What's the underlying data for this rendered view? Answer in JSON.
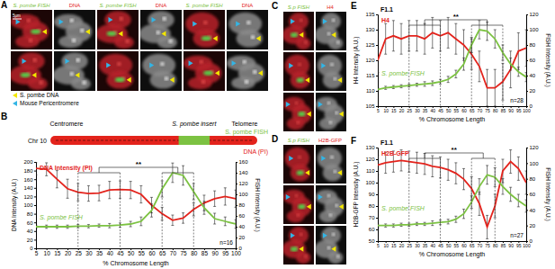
{
  "chart_data": [
    {
      "type": "line",
      "panel": "B",
      "x": [
        5,
        10,
        15,
        20,
        25,
        30,
        35,
        40,
        45,
        50,
        55,
        60,
        65,
        70,
        75,
        80,
        85,
        90,
        95,
        100
      ],
      "xlim": [
        5,
        100
      ],
      "xticks": [
        5,
        10,
        15,
        20,
        25,
        30,
        35,
        40,
        45,
        50,
        55,
        60,
        65,
        70,
        75,
        80,
        85,
        90,
        95,
        100
      ],
      "xlabel": "% Chromosome Length",
      "ylabel": "DNA Intensity (A.U.)",
      "ylim": [
        0,
        200
      ],
      "yticks": [
        0,
        20,
        40,
        60,
        80,
        100,
        120,
        140,
        160,
        180,
        200
      ],
      "y2label": "FISH Intensity (A.U.)",
      "y2lim": [
        0,
        160
      ],
      "y2ticks": [
        0,
        20,
        40,
        60,
        80,
        100,
        120,
        140,
        160
      ],
      "series": [
        {
          "name": "DNA Intensity (PI)",
          "color": "#e3231c",
          "values": [
            185,
            183,
            160,
            138,
            130,
            127,
            128,
            135,
            136,
            135,
            125,
            100,
            80,
            65,
            70,
            90,
            105,
            115,
            120,
            115
          ],
          "errors": [
            15,
            15,
            20,
            22,
            20,
            18,
            18,
            20,
            20,
            20,
            20,
            18,
            15,
            12,
            12,
            15,
            18,
            18,
            20,
            20
          ]
        },
        {
          "name": "S. pombe FISH",
          "color": "#7cc242",
          "axis": "y2",
          "values": [
            40,
            40,
            40,
            40,
            41,
            41,
            42,
            42,
            43,
            45,
            50,
            70,
            110,
            140,
            135,
            105,
            75,
            55,
            50,
            45
          ],
          "errors": [
            3,
            3,
            3,
            3,
            3,
            3,
            3,
            4,
            4,
            5,
            8,
            12,
            15,
            18,
            18,
            15,
            12,
            10,
            8,
            8
          ]
        }
      ],
      "significance": {
        "label": "**",
        "ranges": [
          [
            25,
            45
          ],
          [
            65,
            80
          ]
        ]
      },
      "note": "n=16"
    },
    {
      "type": "line",
      "panel": "E",
      "title": "F1.1",
      "x": [
        5,
        10,
        15,
        20,
        25,
        30,
        35,
        40,
        45,
        50,
        55,
        60,
        65,
        70,
        75,
        80,
        85,
        90,
        95,
        100
      ],
      "xlim": [
        5,
        100
      ],
      "xticks": [
        5,
        10,
        15,
        20,
        25,
        30,
        35,
        40,
        45,
        50,
        55,
        60,
        65,
        70,
        75,
        80,
        85,
        90,
        95,
        100
      ],
      "xlabel": "% Chromosome Length",
      "ylabel": "H4 Intensity (A.U.)",
      "ylim": [
        105,
        135
      ],
      "yticks": [
        105,
        110,
        115,
        120,
        125,
        130,
        135
      ],
      "y2label": "FISH Intensity (A.U.)",
      "y2lim": [
        0,
        120
      ],
      "y2ticks": [
        0,
        20,
        40,
        60,
        80,
        100,
        120
      ],
      "series": [
        {
          "name": "H4",
          "color": "#e3231c",
          "values": [
            120,
            127,
            128,
            127,
            128,
            128,
            127,
            129,
            128,
            129,
            127,
            125,
            122,
            118,
            111,
            111,
            113,
            117,
            123,
            124
          ],
          "errors": [
            4,
            5,
            5,
            5,
            5,
            5,
            5,
            5,
            5,
            5,
            5,
            5,
            5,
            5,
            6,
            6,
            6,
            6,
            6,
            6
          ]
        },
        {
          "name": "S. pombe FISH",
          "color": "#7cc242",
          "axis": "y2",
          "values": [
            22,
            24,
            25,
            26,
            27,
            28,
            29,
            30,
            32,
            35,
            42,
            55,
            80,
            100,
            98,
            88,
            70,
            55,
            45,
            38
          ],
          "errors": [
            2,
            2,
            2,
            2,
            2,
            2,
            3,
            3,
            3,
            4,
            5,
            8,
            10,
            12,
            12,
            12,
            10,
            8,
            6,
            6
          ]
        }
      ],
      "significance": {
        "label": "**",
        "ranges": [
          [
            25,
            45
          ],
          [
            65,
            85
          ]
        ]
      },
      "note": "n=28"
    },
    {
      "type": "line",
      "panel": "F",
      "title": "F1.1",
      "x": [
        5,
        10,
        15,
        20,
        25,
        30,
        35,
        40,
        45,
        50,
        55,
        60,
        65,
        70,
        75,
        80,
        85,
        90,
        95,
        100
      ],
      "xlim": [
        5,
        100
      ],
      "xticks": [
        5,
        10,
        15,
        20,
        25,
        30,
        35,
        40,
        45,
        50,
        55,
        60,
        65,
        70,
        75,
        80,
        85,
        90,
        95,
        100
      ],
      "xlabel": "% Chromosome Length",
      "ylabel": "H2B-GFP Intensity (A.U.)",
      "ylim": [
        50,
        130
      ],
      "yticks": [
        50,
        60,
        70,
        80,
        90,
        100,
        110,
        120,
        130
      ],
      "y2label": "FISH Intensity (A.U.)",
      "y2lim": [
        0,
        120
      ],
      "y2ticks": [
        0,
        20,
        40,
        60,
        80,
        100,
        120
      ],
      "series": [
        {
          "name": "H2B-GFP",
          "color": "#e3231c",
          "values": [
            115,
            117,
            118,
            119,
            118,
            117,
            116,
            114,
            113,
            111,
            108,
            103,
            95,
            82,
            62,
            80,
            110,
            118,
            112,
            100
          ],
          "errors": [
            8,
            9,
            9,
            9,
            9,
            9,
            9,
            9,
            9,
            9,
            9,
            9,
            10,
            10,
            10,
            10,
            10,
            10,
            10,
            10
          ]
        },
        {
          "name": "S. pombe FISH",
          "color": "#7cc242",
          "axis": "y2",
          "values": [
            20,
            20,
            20,
            21,
            21,
            22,
            22,
            23,
            24,
            25,
            28,
            35,
            50,
            70,
            85,
            82,
            70,
            60,
            52,
            45
          ],
          "errors": [
            2,
            2,
            2,
            2,
            2,
            2,
            2,
            3,
            3,
            3,
            4,
            6,
            8,
            10,
            12,
            12,
            10,
            9,
            8,
            8
          ]
        }
      ],
      "significance": {
        "label": "**",
        "ranges": [
          [
            25,
            45
          ],
          [
            65,
            80
          ]
        ]
      },
      "note": "n=27"
    }
  ],
  "image_panels": [
    {
      "label": "A",
      "channels": [
        "S. pombe FISH",
        "DNA"
      ],
      "scale_bar": "5μm",
      "legend": [
        {
          "text": "S. pombe DNA",
          "color": "#f2e600"
        },
        {
          "text": "Mouse Pericentromere",
          "color": "#33b5e5"
        }
      ]
    },
    {
      "label": "C",
      "channels": [
        "S.p FISH",
        "H4"
      ]
    },
    {
      "label": "D",
      "channels": [
        "S.p FISH",
        "H2B-GFP"
      ]
    }
  ],
  "schematic": {
    "label": "B",
    "chromosome": "Chr 10",
    "landmarks": [
      "Centromere",
      "S. pombe insert",
      "Telomere"
    ],
    "tracks": [
      {
        "text": "S. pombe FISH",
        "color": "#7cc242"
      },
      {
        "text": "DNA (PI)",
        "color": "#e3231c"
      }
    ]
  }
}
